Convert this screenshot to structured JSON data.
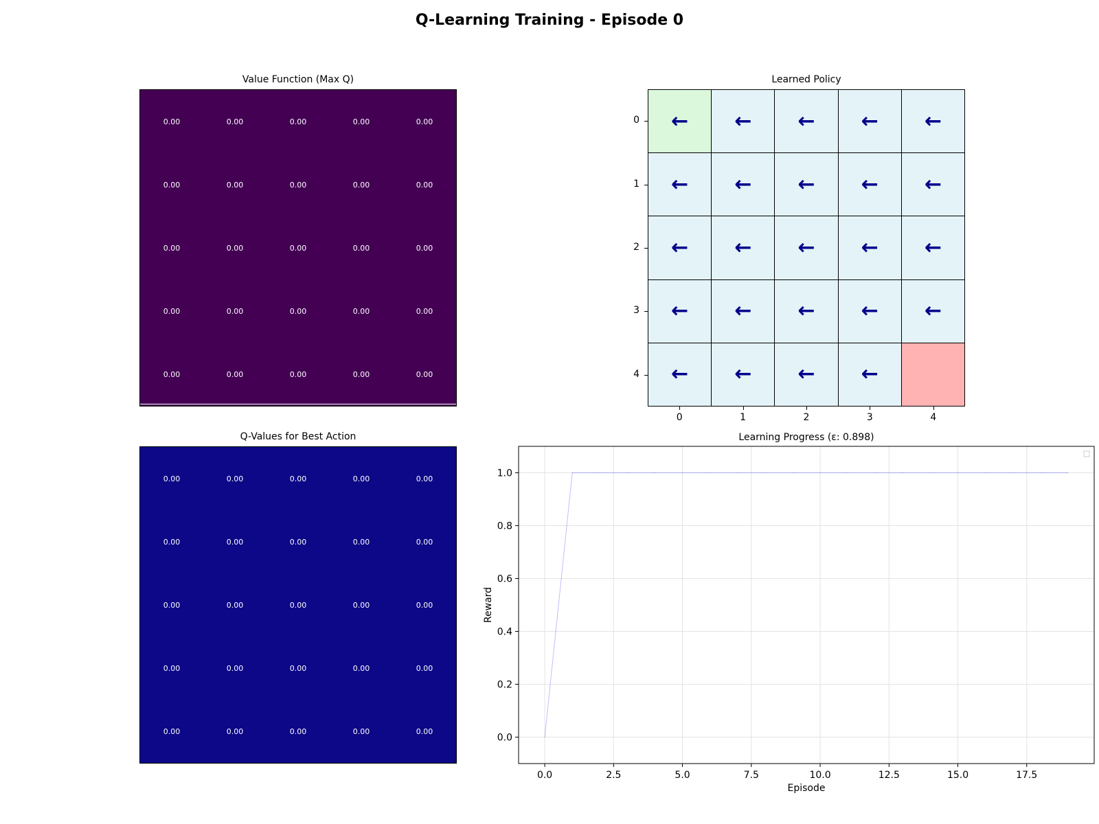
{
  "figure": {
    "suptitle": "Q-Learning Training - Episode 0"
  },
  "value_function": {
    "title": "Value Function (Max Q)",
    "colormap_color": "#440154",
    "values": [
      [
        "0.00",
        "0.00",
        "0.00",
        "0.00",
        "0.00"
      ],
      [
        "0.00",
        "0.00",
        "0.00",
        "0.00",
        "0.00"
      ],
      [
        "0.00",
        "0.00",
        "0.00",
        "0.00",
        "0.00"
      ],
      [
        "0.00",
        "0.00",
        "0.00",
        "0.00",
        "0.00"
      ],
      [
        "0.00",
        "0.00",
        "0.00",
        "0.00",
        "0.00"
      ]
    ]
  },
  "policy": {
    "title": "Learned Policy",
    "row_ticks": [
      "0",
      "1",
      "2",
      "3",
      "4"
    ],
    "col_ticks": [
      "0",
      "1",
      "2",
      "3",
      "4"
    ],
    "start_color": "#dcf8dc",
    "goal_color": "#ffb3b3",
    "cell_color": "#e4f3f7",
    "arrow_color": "#00008b",
    "arrows": [
      [
        "←",
        "←",
        "←",
        "←",
        "←"
      ],
      [
        "←",
        "←",
        "←",
        "←",
        "←"
      ],
      [
        "←",
        "←",
        "←",
        "←",
        "←"
      ],
      [
        "←",
        "←",
        "←",
        "←",
        "←"
      ],
      [
        "←",
        "←",
        "←",
        "←",
        ""
      ]
    ]
  },
  "q_values": {
    "title": "Q-Values for Best Action",
    "colormap_color": "#0d0887",
    "values": [
      [
        "0.00",
        "0.00",
        "0.00",
        "0.00",
        "0.00"
      ],
      [
        "0.00",
        "0.00",
        "0.00",
        "0.00",
        "0.00"
      ],
      [
        "0.00",
        "0.00",
        "0.00",
        "0.00",
        "0.00"
      ],
      [
        "0.00",
        "0.00",
        "0.00",
        "0.00",
        "0.00"
      ],
      [
        "0.00",
        "0.00",
        "0.00",
        "0.00",
        "0.00"
      ]
    ]
  },
  "chart_data": [
    {
      "type": "heatmap",
      "title": "Value Function (Max Q)",
      "rows": 5,
      "cols": 5,
      "values": [
        [
          0,
          0,
          0,
          0,
          0
        ],
        [
          0,
          0,
          0,
          0,
          0
        ],
        [
          0,
          0,
          0,
          0,
          0
        ],
        [
          0,
          0,
          0,
          0,
          0
        ],
        [
          0,
          0,
          0,
          0,
          0
        ]
      ]
    },
    {
      "type": "table",
      "title": "Learned Policy",
      "x_ticks": [
        "0",
        "1",
        "2",
        "3",
        "4"
      ],
      "y_ticks": [
        "0",
        "1",
        "2",
        "3",
        "4"
      ],
      "cells": [
        [
          "←",
          "←",
          "←",
          "←",
          "←"
        ],
        [
          "←",
          "←",
          "←",
          "←",
          "←"
        ],
        [
          "←",
          "←",
          "←",
          "←",
          "←"
        ],
        [
          "←",
          "←",
          "←",
          "←",
          "←"
        ],
        [
          "←",
          "←",
          "←",
          "←",
          ""
        ]
      ]
    },
    {
      "type": "heatmap",
      "title": "Q-Values for Best Action",
      "rows": 5,
      "cols": 5,
      "values": [
        [
          0,
          0,
          0,
          0,
          0
        ],
        [
          0,
          0,
          0,
          0,
          0
        ],
        [
          0,
          0,
          0,
          0,
          0
        ],
        [
          0,
          0,
          0,
          0,
          0
        ],
        [
          0,
          0,
          0,
          0,
          0
        ]
      ]
    },
    {
      "type": "line",
      "title": "Learning Progress (ε: 0.898)",
      "xlabel": "Episode",
      "ylabel": "Reward",
      "xlim": [
        -0.95,
        19.95
      ],
      "ylim": [
        -0.1,
        1.1
      ],
      "xticks": [
        0.0,
        2.5,
        5.0,
        7.5,
        10.0,
        12.5,
        15.0,
        17.5
      ],
      "xtick_labels": [
        "0.0",
        "2.5",
        "5.0",
        "7.5",
        "10.0",
        "12.5",
        "15.0",
        "17.5"
      ],
      "yticks": [
        0.0,
        0.2,
        0.4,
        0.6,
        0.8,
        1.0
      ],
      "ytick_labels": [
        "0.0",
        "0.2",
        "0.4",
        "0.6",
        "0.8",
        "1.0"
      ],
      "grid": true,
      "legend": "top-right",
      "series": [
        {
          "color": "#0000ff",
          "x": [
            0,
            1,
            2,
            3,
            4,
            5,
            6,
            7,
            8,
            9,
            10,
            11,
            12,
            13,
            14,
            15,
            16,
            17,
            18,
            19
          ],
          "y": [
            0,
            1,
            1,
            1,
            1,
            1,
            1,
            1,
            1,
            1,
            1,
            1,
            1,
            1,
            1,
            1,
            1,
            1,
            1,
            1
          ]
        }
      ]
    }
  ]
}
